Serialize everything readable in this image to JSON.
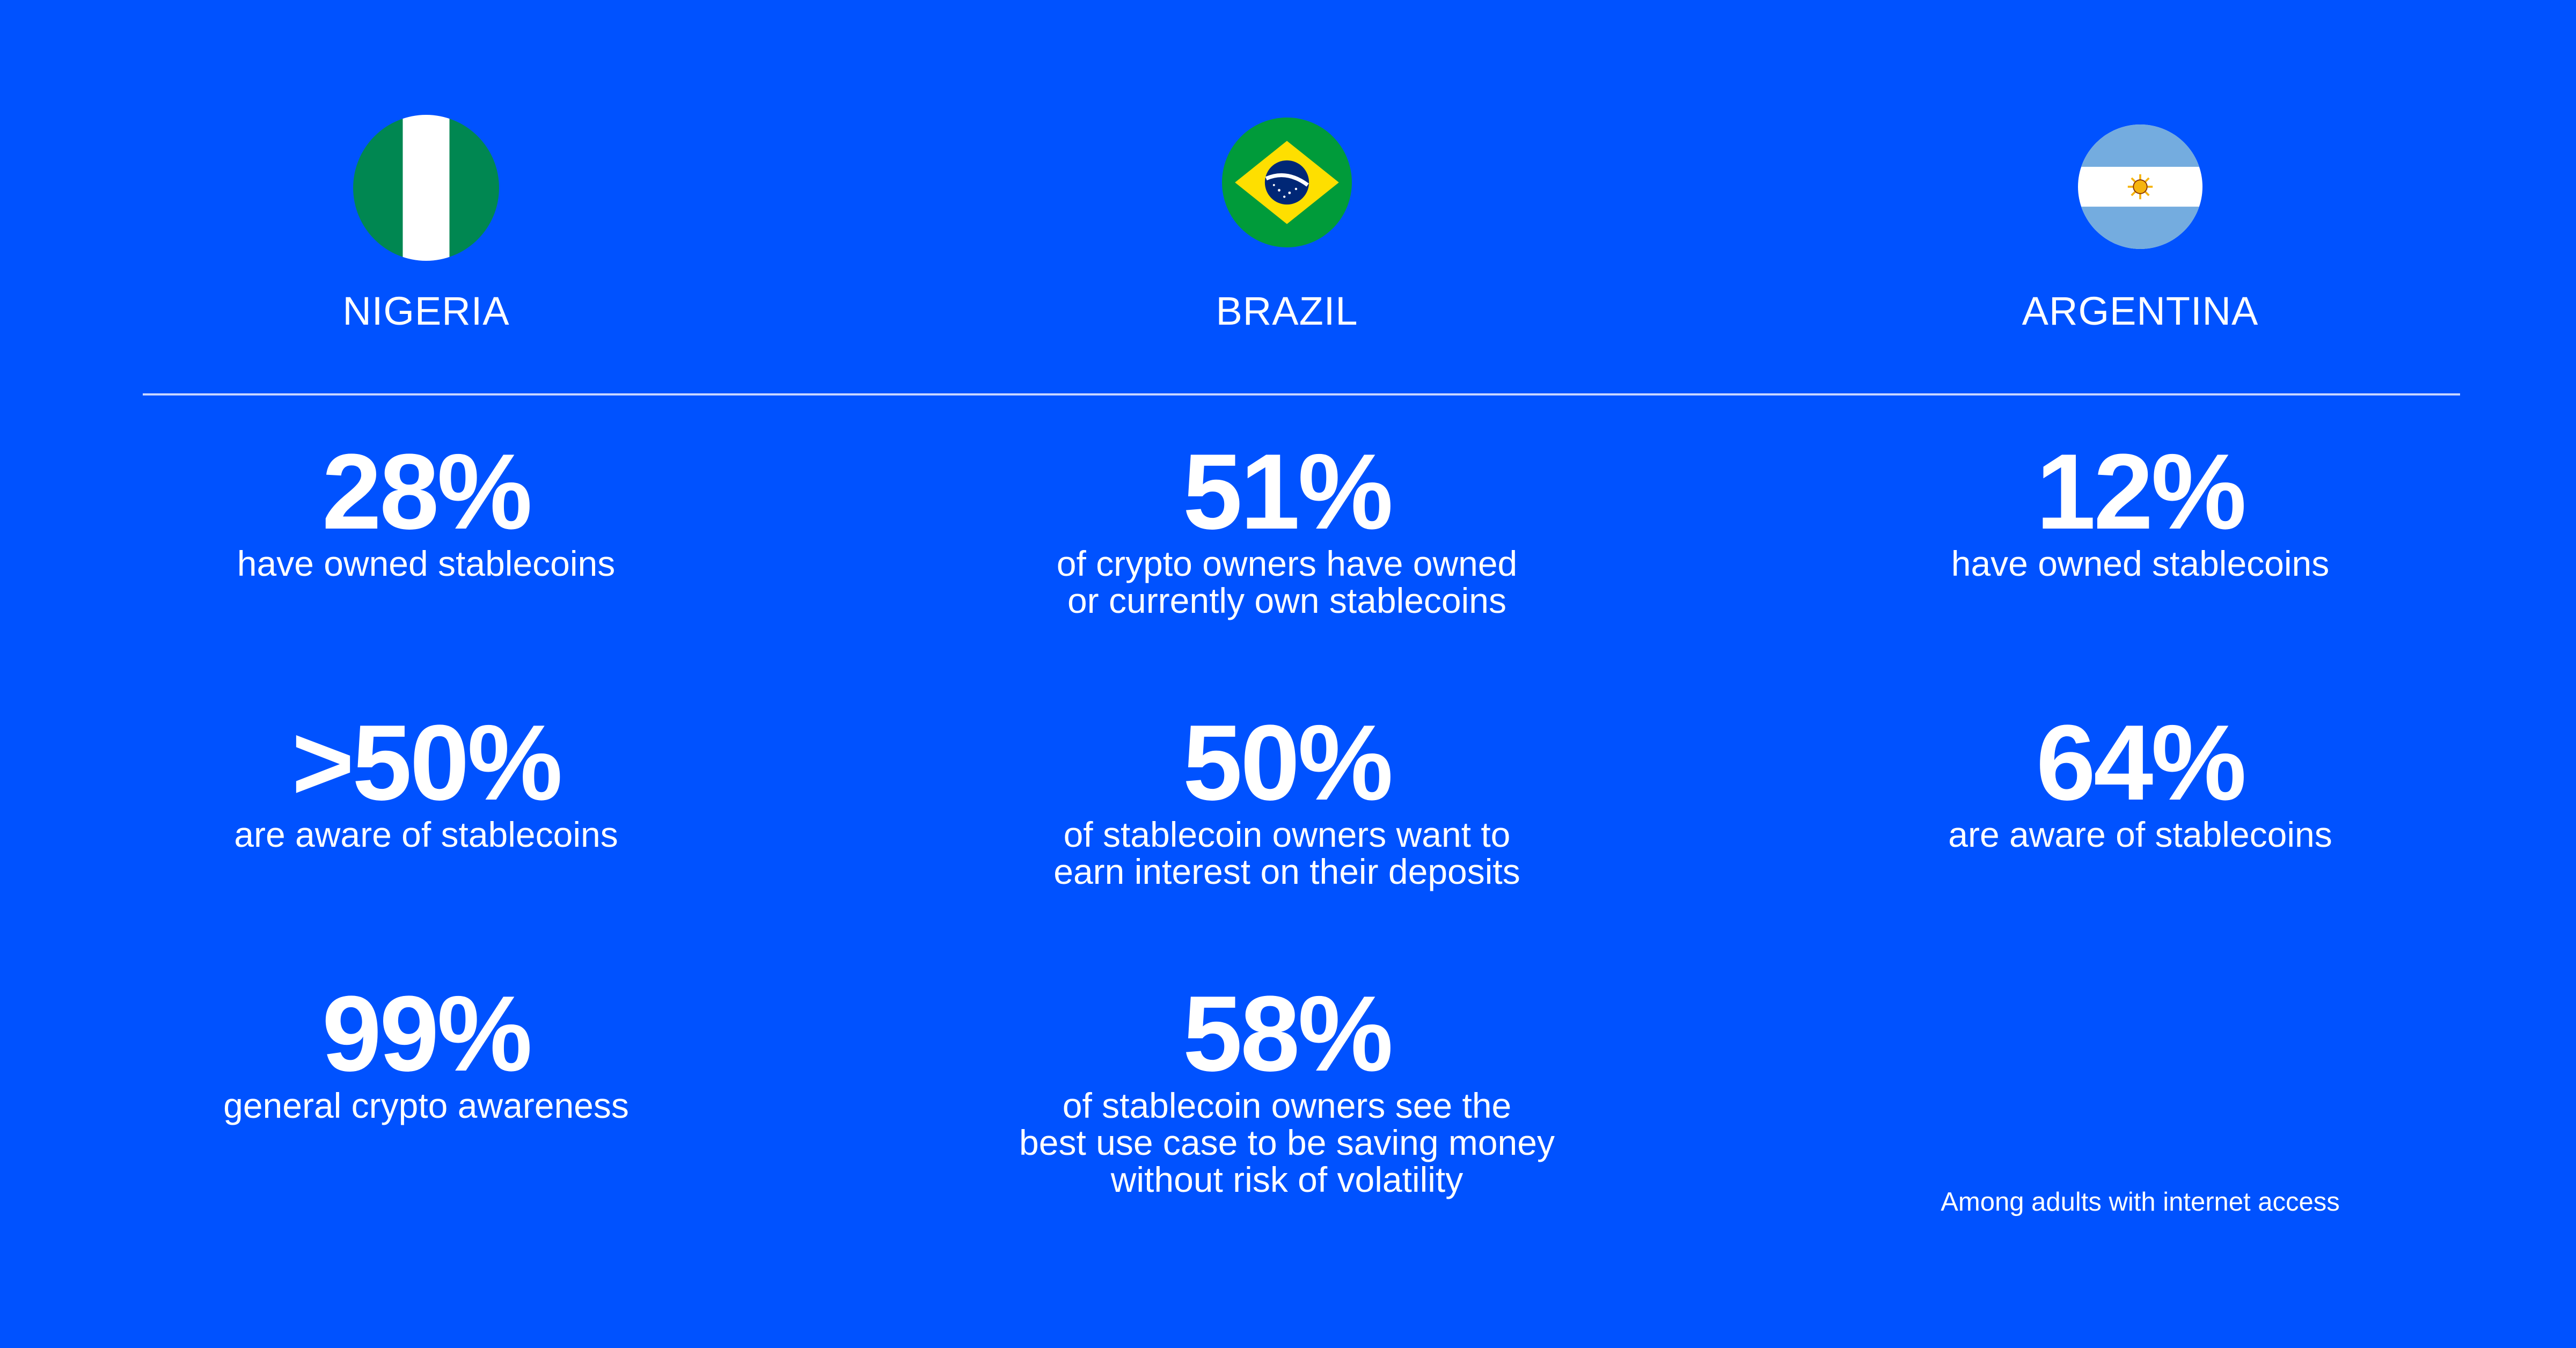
{
  "colors": {
    "background": "#0052FF",
    "text": "#FFFFFF",
    "divider": "#C8D5FF"
  },
  "countries": [
    {
      "name": "NIGERIA",
      "flag_icon": "nigeria-flag-icon",
      "stats": [
        {
          "value": "28%",
          "desc": [
            "have owned stablecoins"
          ]
        },
        {
          "value": ">50%",
          "desc": [
            "are aware of stablecoins"
          ]
        },
        {
          "value": "99%",
          "desc": [
            "general crypto awareness"
          ]
        }
      ]
    },
    {
      "name": "BRAZIL",
      "flag_icon": "brazil-flag-icon",
      "stats": [
        {
          "value": "51%",
          "desc": [
            "of crypto owners have owned",
            "or currently own stablecoins"
          ]
        },
        {
          "value": "50%",
          "desc": [
            "of stablecoin owners want to",
            "earn interest on their deposits"
          ]
        },
        {
          "value": "58%",
          "desc": [
            "of stablecoin owners see the",
            "best use case to be saving money",
            "without risk of volatility"
          ]
        }
      ]
    },
    {
      "name": "ARGENTINA",
      "flag_icon": "argentina-flag-icon",
      "stats": [
        {
          "value": "12%",
          "desc": [
            "have owned stablecoins"
          ]
        },
        {
          "value": "64%",
          "desc": [
            "are aware of stablecoins"
          ]
        }
      ]
    }
  ],
  "footnote": "Among adults with internet access"
}
